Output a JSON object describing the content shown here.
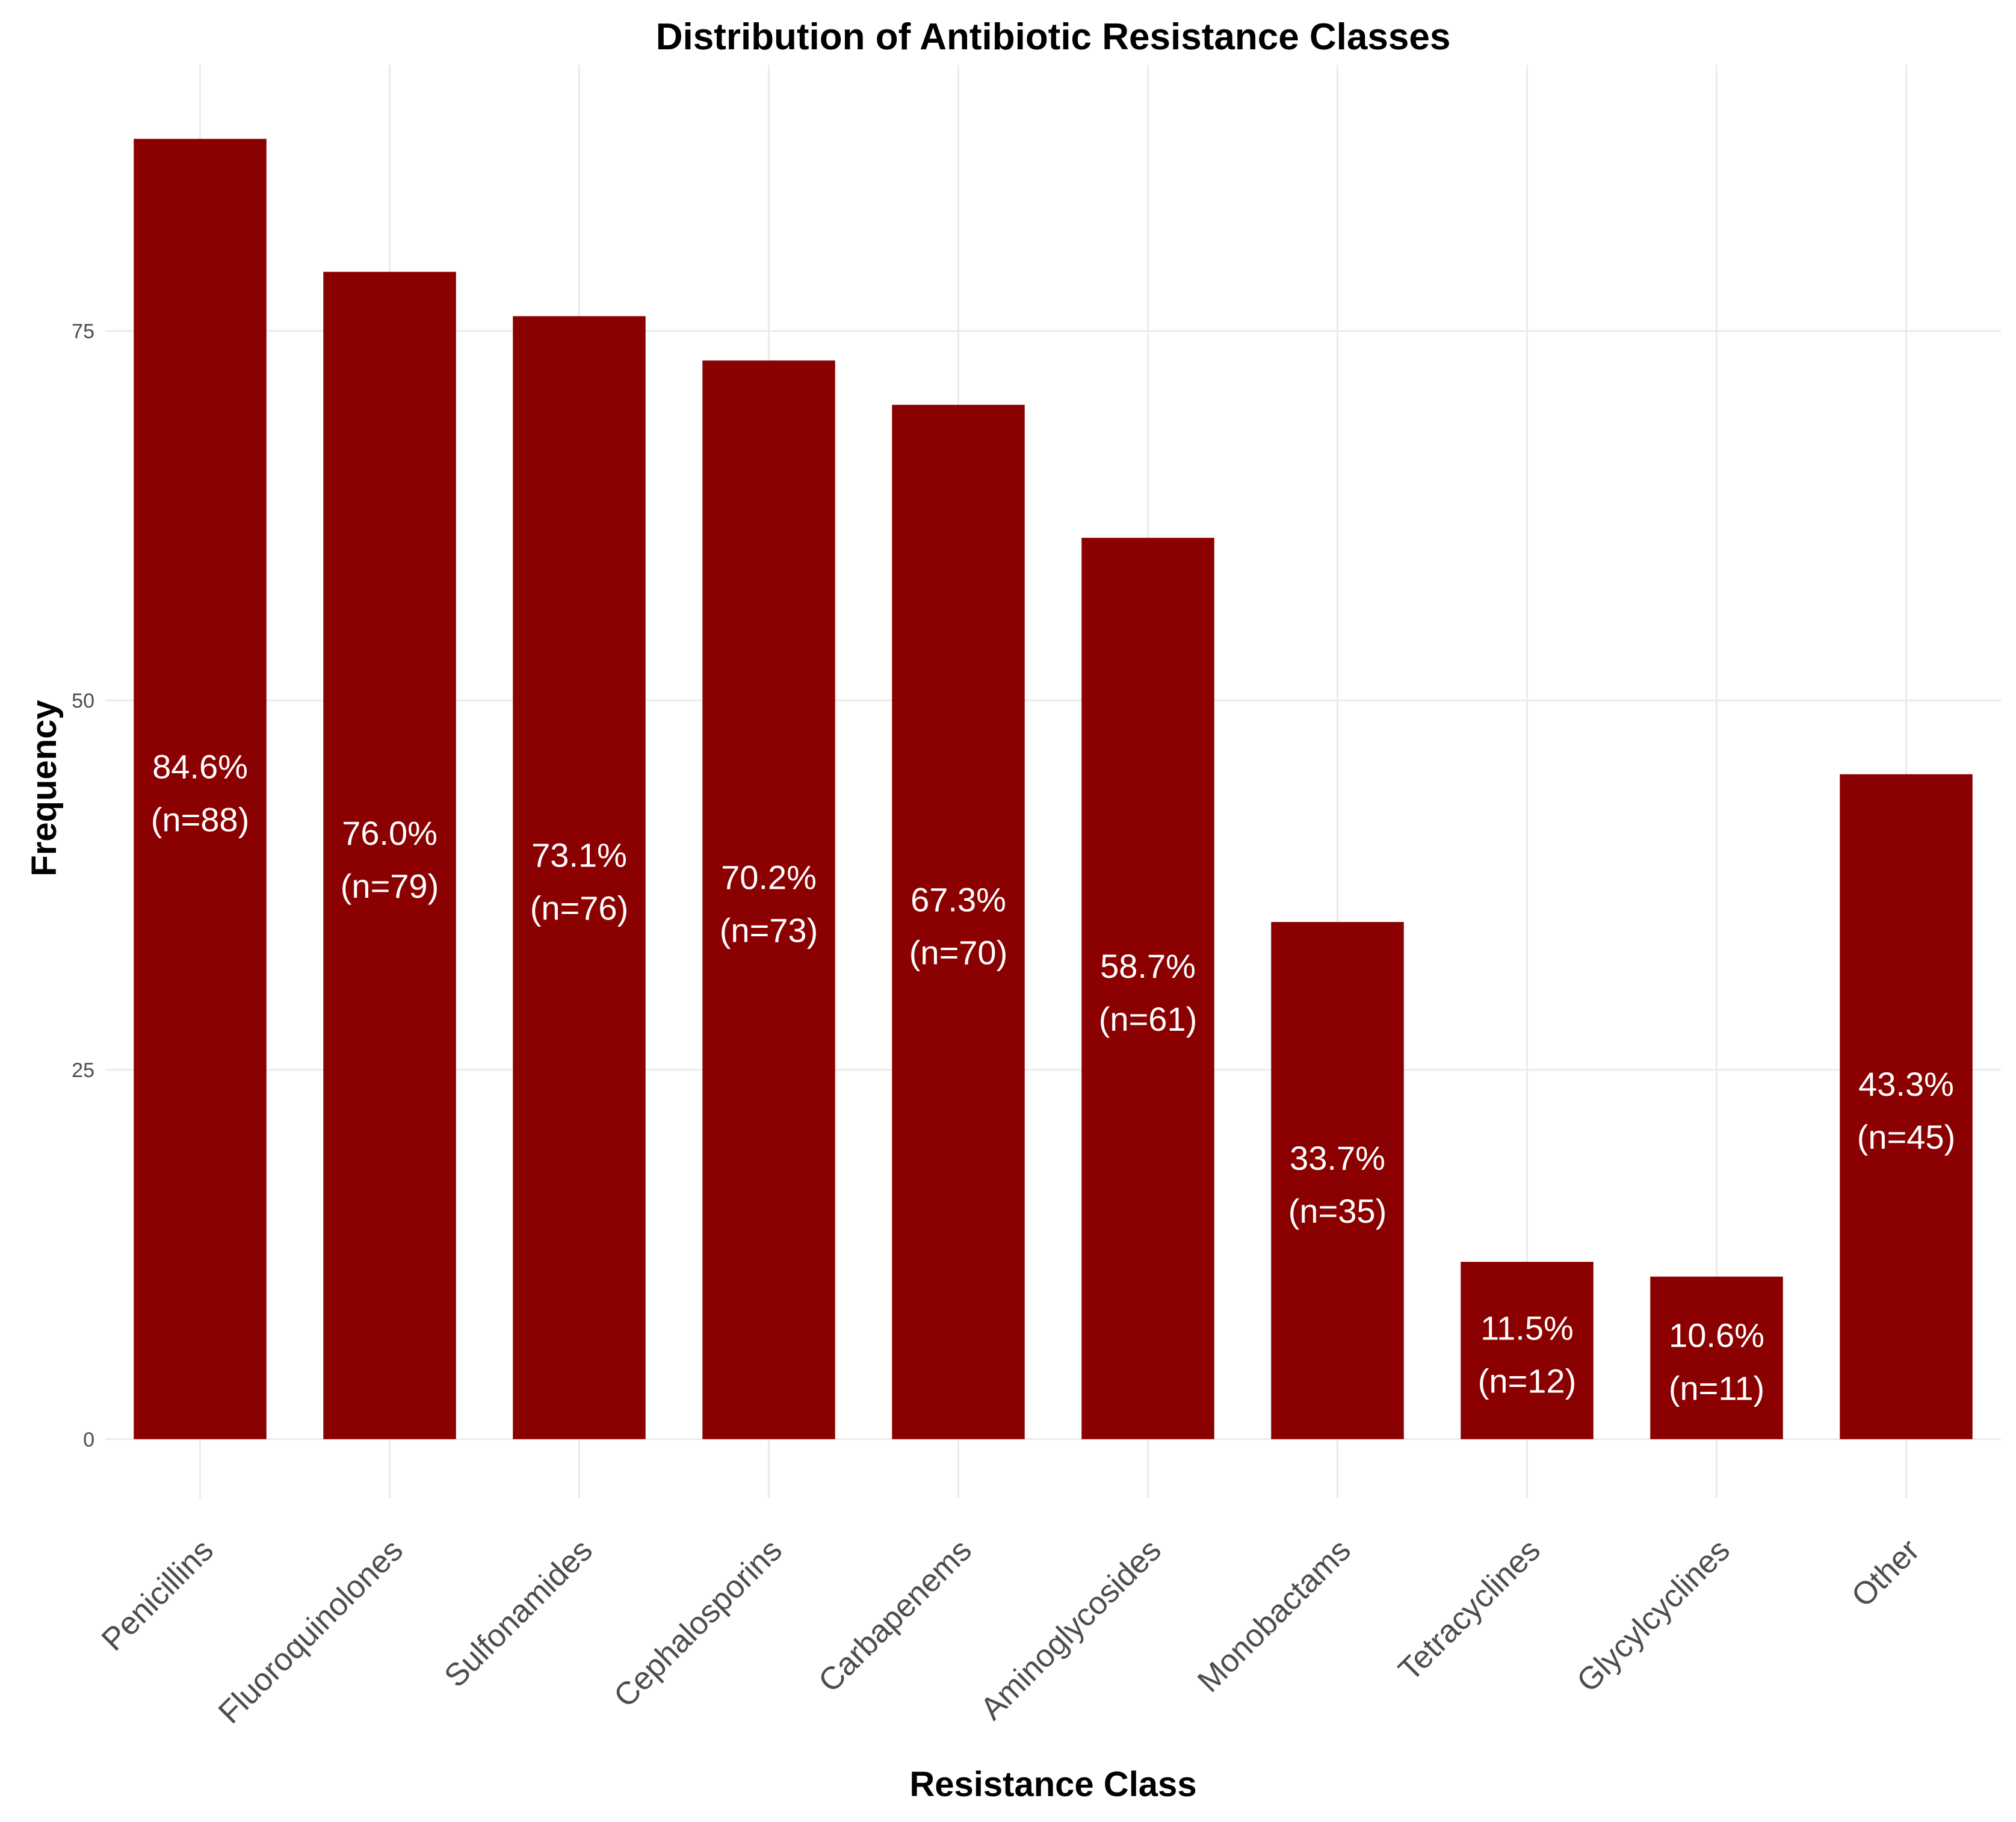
{
  "chart_data": {
    "type": "bar",
    "title": "Distribution of Antibiotic Resistance Classes",
    "xlabel": "Resistance Class",
    "ylabel": "Frequency",
    "ylim": [
      -4,
      93
    ],
    "yticks": [
      0,
      25,
      50,
      75
    ],
    "grid": true,
    "categories": [
      "Penicillins",
      "Fluoroquinolones",
      "Sulfonamides",
      "Cephalosporins",
      "Carbapenems",
      "Aminoglycosides",
      "Monobactams",
      "Tetracyclines",
      "Glycylcyclines",
      "Other"
    ],
    "values": [
      88,
      79,
      76,
      73,
      70,
      61,
      35,
      12,
      11,
      45
    ],
    "data_labels": [
      {
        "percent": "84.6%",
        "count": "(n=88)"
      },
      {
        "percent": "76.0%",
        "count": "(n=79)"
      },
      {
        "percent": "73.1%",
        "count": "(n=76)"
      },
      {
        "percent": "70.2%",
        "count": "(n=73)"
      },
      {
        "percent": "67.3%",
        "count": "(n=70)"
      },
      {
        "percent": "58.7%",
        "count": "(n=61)"
      },
      {
        "percent": "33.7%",
        "count": "(n=35)"
      },
      {
        "percent": "11.5%",
        "count": "(n=12)"
      },
      {
        "percent": "10.6%",
        "count": "(n=11)"
      },
      {
        "percent": "43.3%",
        "count": "(n=45)"
      }
    ],
    "bar_color": "#8b0000",
    "label_color": "#ffffff"
  }
}
